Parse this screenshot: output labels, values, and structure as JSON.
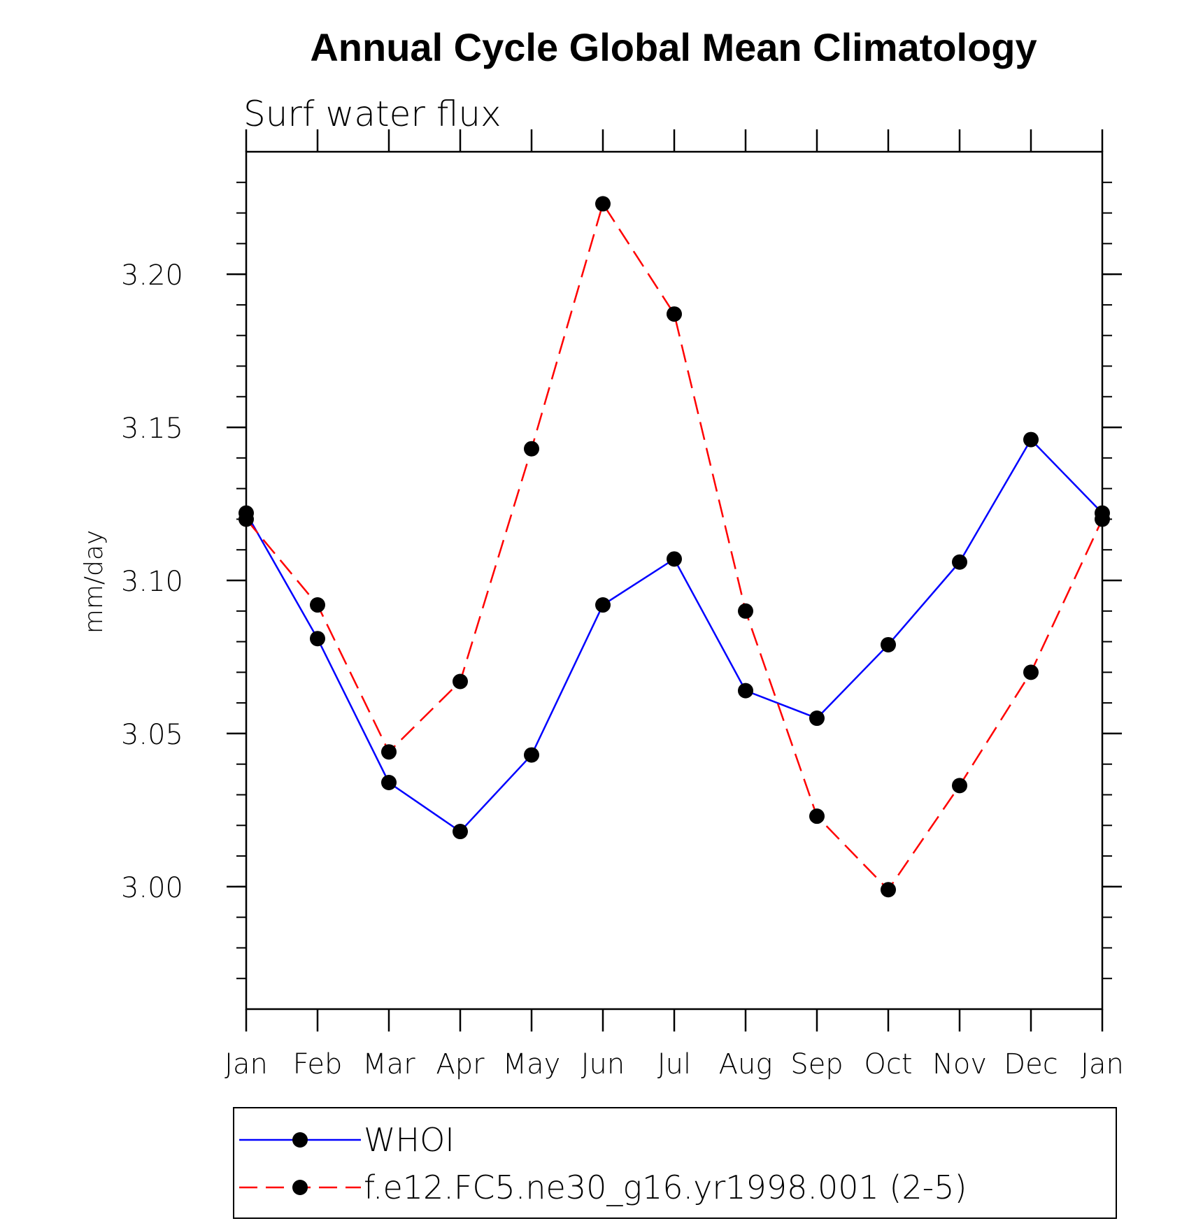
{
  "chart_data": {
    "type": "line",
    "title": "Annual Cycle Global Mean Climatology",
    "subtitle": "Surf water flux",
    "xlabel": "",
    "ylabel": "mm/day",
    "categories": [
      "Jan",
      "Feb",
      "Mar",
      "Apr",
      "May",
      "Jun",
      "Jul",
      "Aug",
      "Sep",
      "Oct",
      "Nov",
      "Dec",
      "Jan"
    ],
    "ylim": [
      2.96,
      3.24
    ],
    "yticks": [
      "3.00",
      "3.05",
      "3.10",
      "3.15",
      "3.20"
    ],
    "grid": false,
    "legend_position": "bottom",
    "series": [
      {
        "name": "WHOI",
        "color": "#0000ff",
        "dash": "solid",
        "marker": "filled-circle",
        "values": [
          3.122,
          3.081,
          3.034,
          3.018,
          3.043,
          3.092,
          3.107,
          3.064,
          3.055,
          3.079,
          3.106,
          3.146,
          3.122
        ]
      },
      {
        "name": "f.e12.FC5.ne30_g16.yr1998.001 (2-5)",
        "color": "#ff0000",
        "dash": "dashed",
        "marker": "filled-circle",
        "values": [
          3.12,
          3.092,
          3.044,
          3.067,
          3.143,
          3.223,
          3.187,
          3.09,
          3.023,
          2.999,
          3.033,
          3.07,
          3.12
        ]
      }
    ]
  }
}
